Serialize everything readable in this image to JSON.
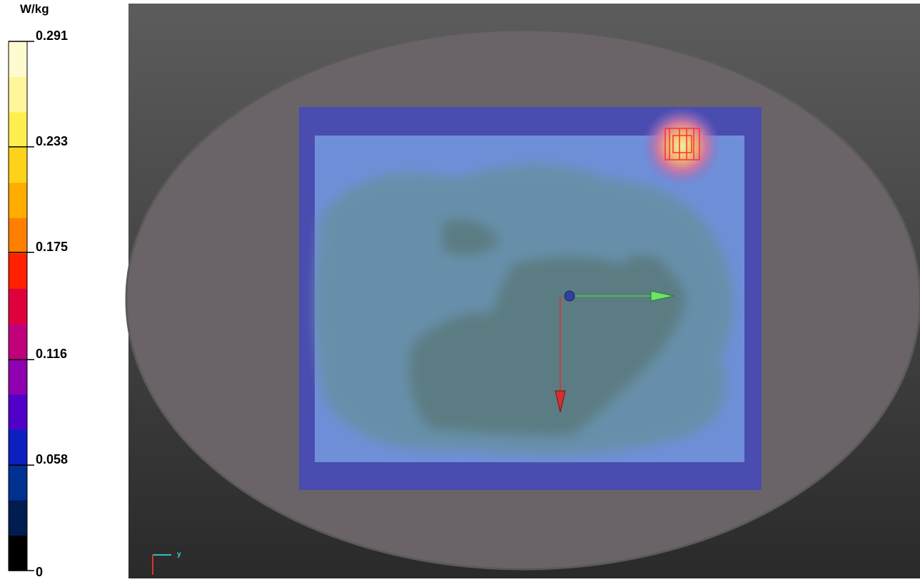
{
  "colorbar": {
    "unit": "W/kg",
    "range": [
      0,
      0.291
    ],
    "ticks": [
      0.291,
      0.233,
      0.175,
      0.116,
      0.058,
      0
    ],
    "colors": [
      "#000000",
      "#001c50",
      "#003090",
      "#0c20c0",
      "#5000c8",
      "#8e00b0",
      "#c0007a",
      "#e0003c",
      "#ff2000",
      "#ff7f00",
      "#ffab00",
      "#ffd21a",
      "#ffee50",
      "#fff59a",
      "#fffbd0"
    ]
  },
  "view": {
    "axis_label": "y"
  }
}
